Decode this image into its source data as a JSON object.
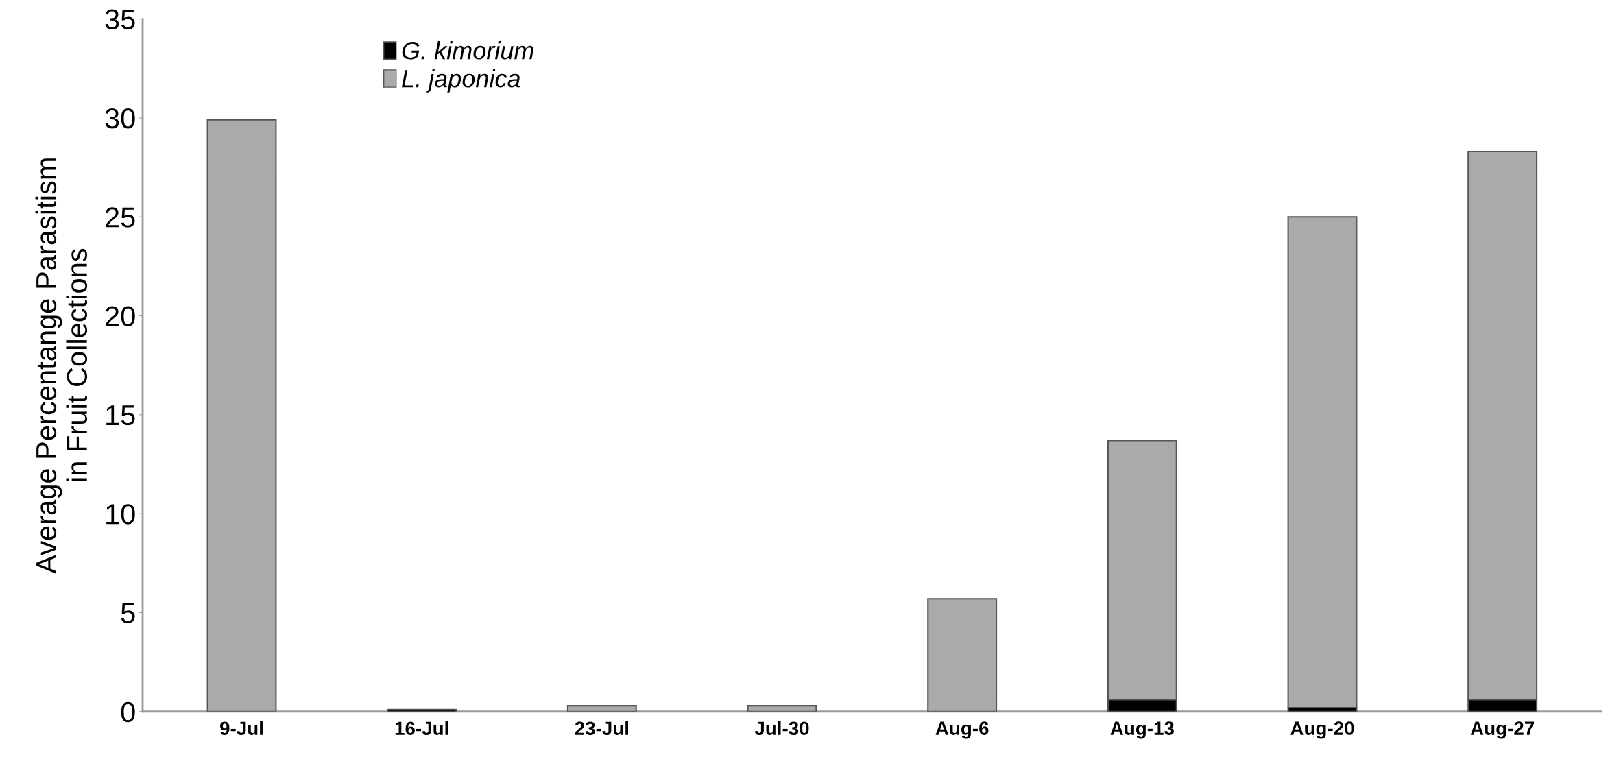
{
  "chart_data": {
    "type": "bar",
    "stacked": true,
    "ylabel": "Average Percentange Parasitism\nin Fruit Collections",
    "categories": [
      "9-Jul",
      "16-Jul",
      "23-Jul",
      "Jul-30",
      "Aug-6",
      "Aug-13",
      "Aug-20",
      "Aug-27"
    ],
    "series": [
      {
        "name": "G. kimorium",
        "color": "#000000",
        "values": [
          0,
          0.1,
          0,
          0,
          0,
          0.6,
          0.2,
          0.6
        ]
      },
      {
        "name": "L. japonica",
        "color": "#aaaaaa",
        "values": [
          29.9,
          0,
          0.3,
          0.3,
          5.7,
          13.1,
          24.8,
          27.7
        ]
      }
    ],
    "ylim": [
      0,
      35
    ],
    "yticks": [
      0,
      5,
      10,
      15,
      20,
      25,
      30,
      35
    ],
    "grid": false,
    "legend": "top left"
  }
}
